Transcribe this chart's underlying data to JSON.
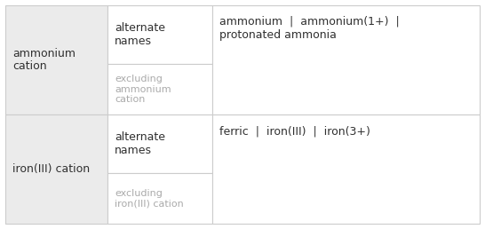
{
  "rows": [
    {
      "col1": "ammonium\ncation",
      "col2_top": "alternate\nnames",
      "col2_bottom": "excluding\nammonium\ncation",
      "col3": "ammonium  |  ammonium(1+)  |\nprotonated ammonia"
    },
    {
      "col1": "iron(III) cation",
      "col2_top": "alternate\nnames",
      "col2_bottom": "excluding\niron(III) cation",
      "col3": "ferric  |  iron(III)  |  iron(3+)"
    }
  ],
  "col1_bg": "#ebebeb",
  "col2_bg": "#ffffff",
  "col3_bg": "#ffffff",
  "outer_bg": "#ffffff",
  "border_color": "#cccccc",
  "text_color_main": "#303030",
  "text_color_gray": "#aaaaaa",
  "font_size_main": 9,
  "font_size_gray": 8,
  "bg_color": "#ffffff"
}
